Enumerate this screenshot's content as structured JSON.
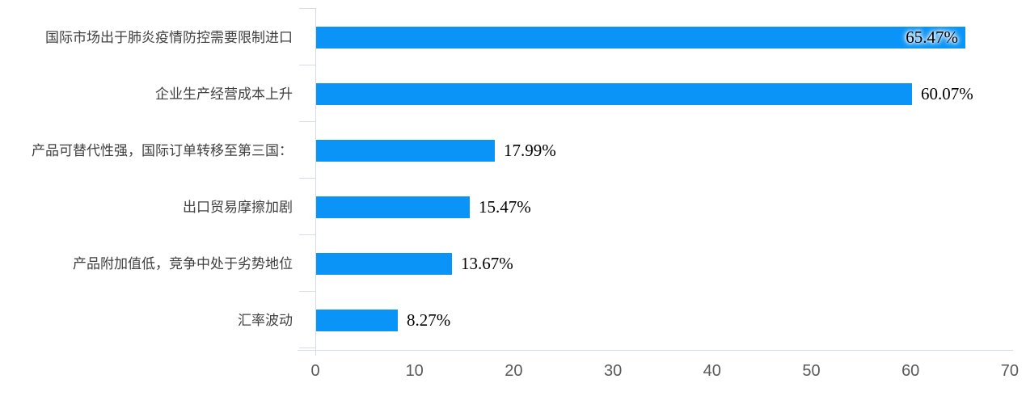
{
  "chart_data": {
    "type": "bar",
    "orientation": "horizontal",
    "title": "",
    "xlabel": "",
    "ylabel": "",
    "categories": [
      "国际市场出于肺炎疫情防控需要限制进口",
      "企业生产经营成本上升",
      "产品可替代性强，国际订单转移至第三国：",
      "出口贸易摩擦加剧",
      "产品附加值低，竞争中处于劣势地位",
      "汇率波动"
    ],
    "values": [
      65.47,
      60.07,
      17.99,
      15.47,
      13.67,
      8.27
    ],
    "value_labels": [
      "65.47%",
      "60.07%",
      "17.99%",
      "15.47%",
      "13.67%",
      "8.27%"
    ],
    "value_label_placement": [
      "inside-end",
      "outside",
      "outside",
      "outside",
      "outside",
      "outside"
    ],
    "xlim": [
      0,
      70
    ],
    "x_ticks": [
      0,
      10,
      20,
      30,
      40,
      50,
      60,
      70
    ],
    "grid": false,
    "legend": false,
    "colors": {
      "bar": "#0a94f7",
      "axis_line": "#d6dce3",
      "tick_label": "#595959",
      "category_label": "#404040",
      "value_label": "#000000"
    }
  }
}
